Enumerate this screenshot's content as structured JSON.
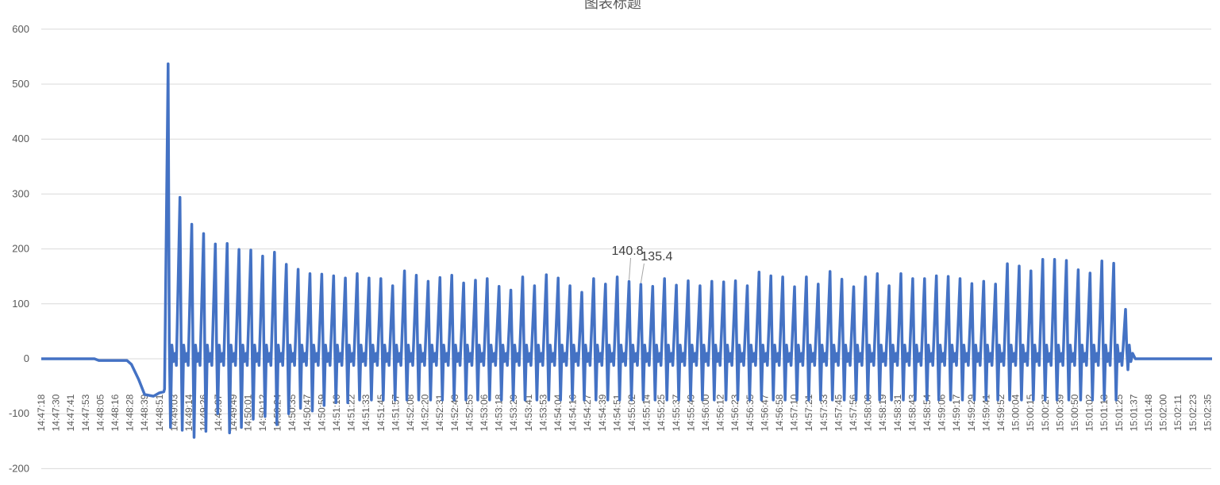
{
  "chart_data": {
    "type": "line",
    "title": "图表标题",
    "ylim": [
      -200,
      600
    ],
    "yticks": [
      "-200",
      "-100",
      "0",
      "100",
      "200",
      "300",
      "400",
      "500",
      "600"
    ],
    "grid": true,
    "legend": "none",
    "line_color": "#4472c4",
    "xtick_labels": [
      "14:47:18",
      "14:47:30",
      "14:47:41",
      "14:47:53",
      "14:48:05",
      "14:48:16",
      "14:48:28",
      "14:48:39",
      "14:48:51",
      "14:49:03",
      "14:49:14",
      "14:49:26",
      "14:49:37",
      "14:49:49",
      "14:50:01",
      "14:50:12",
      "14:50:24",
      "14:50:35",
      "14:50:47",
      "14:50:59",
      "14:51:10",
      "14:51:22",
      "14:51:33",
      "14:51:45",
      "14:51:57",
      "14:52:08",
      "14:52:20",
      "14:52:31",
      "14:52:43",
      "14:52:55",
      "14:53:06",
      "14:53:18",
      "14:53:29",
      "14:53:41",
      "14:53:53",
      "14:54:04",
      "14:54:16",
      "14:54:27",
      "14:54:39",
      "14:54:51",
      "14:55:02",
      "14:55:14",
      "14:55:25",
      "14:55:37",
      "14:55:49",
      "14:56:00",
      "14:56:12",
      "14:56:23",
      "14:56:35",
      "14:56:47",
      "14:56:58",
      "14:57:10",
      "14:57:21",
      "14:57:33",
      "14:57:45",
      "14:57:56",
      "14:58:08",
      "14:58:19",
      "14:58:31",
      "14:58:43",
      "14:58:54",
      "14:59:06",
      "14:59:17",
      "14:59:29",
      "14:59:41",
      "14:59:52",
      "15:00:04",
      "15:00:15",
      "15:00:27",
      "15:00:39",
      "15:00:50",
      "15:01:02",
      "15:01:13",
      "15:01:25",
      "15:01:37",
      "15:01:48",
      "15:02:00",
      "15:02:11",
      "15:02:23",
      "15:02:35"
    ],
    "baseline": [
      {
        "t": 0,
        "v": 0
      },
      {
        "t": 3.6,
        "v": 0
      },
      {
        "t": 3.9,
        "v": -3
      },
      {
        "t": 5.8,
        "v": -3
      },
      {
        "t": 6.1,
        "v": -10
      },
      {
        "t": 6.6,
        "v": -38
      },
      {
        "t": 7.0,
        "v": -65
      },
      {
        "t": 7.6,
        "v": -68
      },
      {
        "t": 8.0,
        "v": -62
      },
      {
        "t": 8.3,
        "v": -60
      }
    ],
    "peaks": [
      537,
      294,
      245,
      228,
      209,
      210,
      199,
      198,
      187,
      194,
      172,
      163,
      155,
      154,
      151,
      147,
      155,
      147,
      146,
      133,
      160,
      152,
      141,
      148,
      152,
      138,
      143,
      146,
      132,
      125,
      149,
      133,
      153,
      147,
      133,
      121,
      146,
      136,
      149,
      140.8,
      135.4,
      132,
      146,
      134,
      142,
      133,
      141,
      140,
      142,
      133,
      158,
      151,
      149,
      131,
      149,
      136,
      159,
      145,
      131,
      149,
      155,
      133,
      155,
      146,
      146,
      151,
      150,
      146,
      137,
      141,
      136,
      173,
      169,
      160,
      181,
      181,
      179,
      162,
      156,
      178,
      174,
      90
    ],
    "troughs": [
      -125,
      -130,
      -143,
      -132,
      -100,
      -135,
      -125,
      -110,
      -105,
      -120,
      -100,
      -90,
      -95,
      -85,
      -80,
      -80,
      -75,
      -75,
      -75,
      -75,
      -75,
      -75,
      -75,
      -75,
      -75,
      -75,
      -75,
      -75,
      -75,
      -75,
      -75,
      -75,
      -75,
      -75,
      -75,
      -75,
      -75,
      -75,
      -75,
      -75,
      -75,
      -75,
      -75,
      -75,
      -75,
      -75,
      -75,
      -75,
      -75,
      -75,
      -75,
      -75,
      -75,
      -75,
      -75,
      -75,
      -75,
      -75,
      -75,
      -75,
      -75,
      -75,
      -75,
      -75,
      -75,
      -75,
      -75,
      -75,
      -75,
      -75,
      -75,
      -75,
      -75,
      -75,
      -75,
      -75,
      -75,
      -75,
      -75,
      -75,
      -75,
      -20
    ],
    "tail_value": 0,
    "data_labels": [
      {
        "index": 39,
        "text": "140.8"
      },
      {
        "index": 40,
        "text": "135.4"
      }
    ]
  }
}
